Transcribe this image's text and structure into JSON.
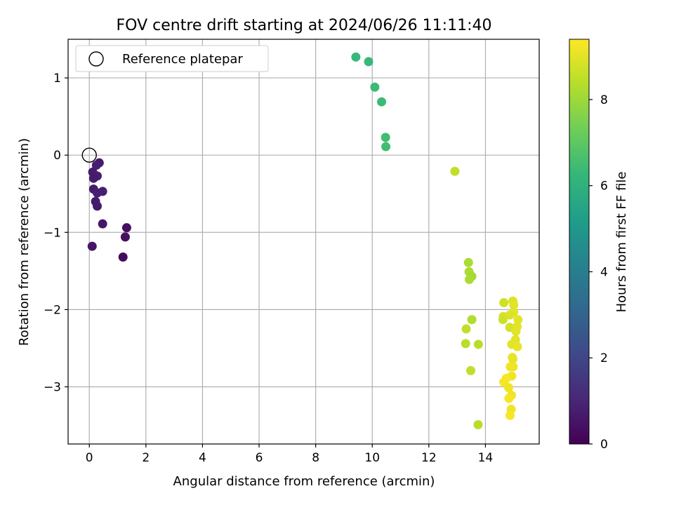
{
  "chart_data": {
    "type": "scatter",
    "title": "FOV centre drift starting at 2024/06/26 11:11:40",
    "xlabel": "Angular distance from reference (arcmin)",
    "ylabel": "Rotation from reference (arcmin)",
    "xlim": [
      -0.75,
      15.9
    ],
    "ylim": [
      -3.74,
      1.5
    ],
    "xticks": [
      0,
      2,
      4,
      6,
      8,
      10,
      12,
      14
    ],
    "yticks": [
      -3,
      -2,
      -1,
      0,
      1
    ],
    "grid": true,
    "legend": {
      "placement": "upper-left",
      "entries": [
        "Reference platepar"
      ]
    },
    "reference_point": {
      "x": 0,
      "y": 0
    },
    "colorbar": {
      "label": "Hours from first FF file",
      "colormap": "viridis",
      "range": [
        0,
        9.4
      ],
      "ticks": [
        0,
        2,
        4,
        6,
        8
      ],
      "stops": [
        "#440154",
        "#482878",
        "#3e4989",
        "#31688e",
        "#26828e",
        "#1f9e89",
        "#35b779",
        "#6ece58",
        "#b5de2b",
        "#fde725"
      ]
    },
    "series": [
      {
        "points": [
          {
            "x": 0.35,
            "y": -0.1,
            "t": 0.7
          },
          {
            "x": 0.25,
            "y": -0.13,
            "t": 0.8
          },
          {
            "x": 0.12,
            "y": -0.22,
            "t": 0.7
          },
          {
            "x": 0.28,
            "y": -0.27,
            "t": 0.8
          },
          {
            "x": 0.15,
            "y": -0.3,
            "t": 0.7
          },
          {
            "x": 0.15,
            "y": -0.44,
            "t": 0.7
          },
          {
            "x": 0.28,
            "y": -0.49,
            "t": 0.8
          },
          {
            "x": 0.47,
            "y": -0.47,
            "t": 0.8
          },
          {
            "x": 0.22,
            "y": -0.6,
            "t": 0.7
          },
          {
            "x": 0.28,
            "y": -0.66,
            "t": 0.7
          },
          {
            "x": 0.47,
            "y": -0.89,
            "t": 0.6
          },
          {
            "x": 1.32,
            "y": -0.94,
            "t": 0.4
          },
          {
            "x": 1.27,
            "y": -1.06,
            "t": 0.4
          },
          {
            "x": 0.1,
            "y": -1.18,
            "t": 0.6
          },
          {
            "x": 1.19,
            "y": -1.32,
            "t": 0.3
          },
          {
            "x": 9.42,
            "y": 1.27,
            "t": 6.3
          },
          {
            "x": 9.87,
            "y": 1.21,
            "t": 6.3
          },
          {
            "x": 10.09,
            "y": 0.88,
            "t": 6.4
          },
          {
            "x": 10.33,
            "y": 0.69,
            "t": 6.4
          },
          {
            "x": 10.47,
            "y": 0.23,
            "t": 6.5
          },
          {
            "x": 10.48,
            "y": 0.11,
            "t": 6.5
          },
          {
            "x": 12.92,
            "y": -0.21,
            "t": 8.5
          },
          {
            "x": 13.4,
            "y": -1.39,
            "t": 8.2
          },
          {
            "x": 13.42,
            "y": -1.51,
            "t": 8.2
          },
          {
            "x": 13.52,
            "y": -1.57,
            "t": 8.1
          },
          {
            "x": 13.43,
            "y": -1.61,
            "t": 8.2
          },
          {
            "x": 13.52,
            "y": -2.13,
            "t": 8.3
          },
          {
            "x": 13.32,
            "y": -2.25,
            "t": 8.5
          },
          {
            "x": 13.3,
            "y": -2.44,
            "t": 8.4
          },
          {
            "x": 13.75,
            "y": -2.45,
            "t": 8.4
          },
          {
            "x": 13.48,
            "y": -2.79,
            "t": 8.5
          },
          {
            "x": 13.74,
            "y": -3.49,
            "t": 8.4
          },
          {
            "x": 14.65,
            "y": -1.91,
            "t": 8.7
          },
          {
            "x": 14.63,
            "y": -2.09,
            "t": 8.8
          },
          {
            "x": 14.62,
            "y": -2.13,
            "t": 8.7
          },
          {
            "x": 14.97,
            "y": -1.89,
            "t": 8.9
          },
          {
            "x": 15.0,
            "y": -1.94,
            "t": 9.0
          },
          {
            "x": 15.0,
            "y": -2.03,
            "t": 9.0
          },
          {
            "x": 14.86,
            "y": -2.07,
            "t": 8.9
          },
          {
            "x": 15.15,
            "y": -2.13,
            "t": 9.0
          },
          {
            "x": 14.86,
            "y": -2.23,
            "t": 8.8
          },
          {
            "x": 15.12,
            "y": -2.22,
            "t": 9.0
          },
          {
            "x": 15.08,
            "y": -2.28,
            "t": 9.0
          },
          {
            "x": 15.06,
            "y": -2.39,
            "t": 9.0
          },
          {
            "x": 14.93,
            "y": -2.45,
            "t": 9.0
          },
          {
            "x": 15.13,
            "y": -2.48,
            "t": 9.1
          },
          {
            "x": 14.95,
            "y": -2.62,
            "t": 9.1
          },
          {
            "x": 14.97,
            "y": -2.64,
            "t": 9.1
          },
          {
            "x": 14.88,
            "y": -2.74,
            "t": 9.2
          },
          {
            "x": 14.98,
            "y": -2.74,
            "t": 9.2
          },
          {
            "x": 14.93,
            "y": -2.86,
            "t": 9.2
          },
          {
            "x": 14.74,
            "y": -2.89,
            "t": 9.3
          },
          {
            "x": 14.65,
            "y": -2.94,
            "t": 9.3
          },
          {
            "x": 14.82,
            "y": -3.01,
            "t": 9.2
          },
          {
            "x": 14.92,
            "y": -3.11,
            "t": 9.2
          },
          {
            "x": 14.83,
            "y": -3.15,
            "t": 9.3
          },
          {
            "x": 14.91,
            "y": -3.29,
            "t": 9.2
          },
          {
            "x": 14.87,
            "y": -3.37,
            "t": 9.3
          }
        ]
      }
    ]
  }
}
